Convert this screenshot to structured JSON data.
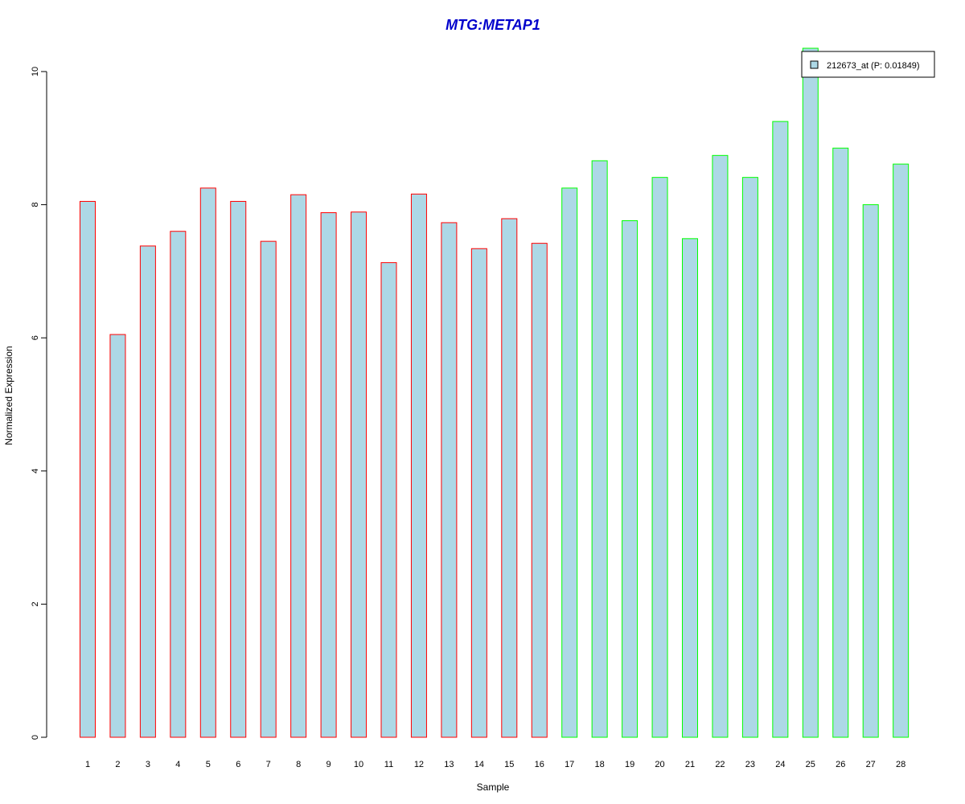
{
  "chart_data": {
    "type": "bar",
    "title": "MTG:METAP1",
    "xlabel": "Sample",
    "ylabel": "Normalized Expression",
    "categories": [
      "1",
      "2",
      "3",
      "4",
      "5",
      "6",
      "7",
      "8",
      "9",
      "10",
      "11",
      "12",
      "13",
      "14",
      "15",
      "16",
      "17",
      "18",
      "19",
      "20",
      "21",
      "22",
      "23",
      "24",
      "25",
      "26",
      "27",
      "28"
    ],
    "series": [
      {
        "name": "212673_at (P: 0.01849)",
        "values": [
          8.05,
          6.05,
          7.38,
          7.6,
          8.25,
          8.05,
          7.45,
          8.15,
          7.88,
          7.89,
          7.13,
          8.16,
          7.73,
          7.34,
          7.79,
          7.42,
          8.25,
          8.66,
          7.76,
          8.41,
          7.49,
          8.74,
          8.41,
          9.25,
          10.35,
          8.85,
          8.0,
          8.61
        ]
      }
    ],
    "group_sizes": [
      16,
      12
    ],
    "ylim": [
      0,
      10
    ],
    "yticks": [
      0,
      2,
      4,
      6,
      8,
      10
    ],
    "grid": false,
    "legend_position": "top-right",
    "colors": {
      "title": "#0000cc",
      "bar_fill": "#add8e6",
      "group1_border": "#ff0000",
      "group2_border": "#00ff00",
      "axis": "#000000"
    }
  }
}
